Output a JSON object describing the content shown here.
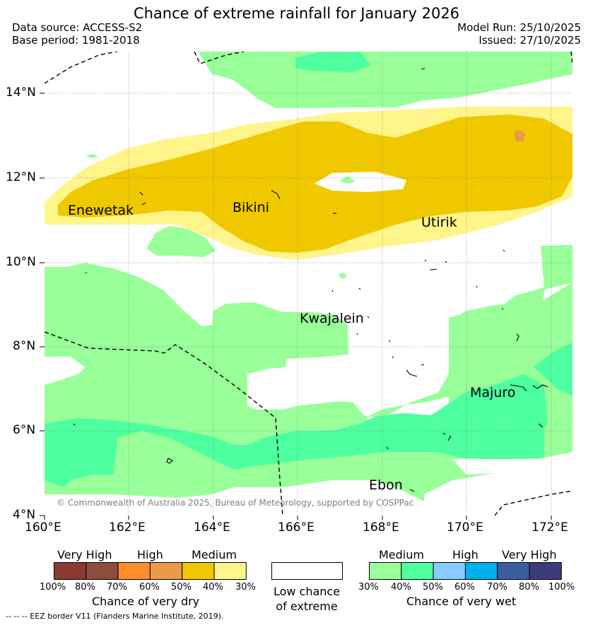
{
  "header": {
    "title": "Chance of extreme rainfall for January 2026",
    "data_source": "Data source: ACCESS-S2",
    "base_period": "Base period: 1981-2018",
    "model_run": "Model Run: 25/10/2025",
    "issued": "Issued: 27/10/2025"
  },
  "map": {
    "lat_labels": [
      "14°N",
      "12°N",
      "10°N",
      "8°N",
      "6°N",
      "4°N"
    ],
    "lon_labels": [
      "160°E",
      "162°E",
      "164°E",
      "166°E",
      "168°E",
      "170°E",
      "172°E"
    ],
    "places": [
      {
        "name": "Enewetak"
      },
      {
        "name": "Bikini"
      },
      {
        "name": "Utirik"
      },
      {
        "name": "Kwajalein"
      },
      {
        "name": "Majuro"
      },
      {
        "name": "Ebon"
      }
    ],
    "copyright": "© Commonwealth of Australia 2025, Bureau of Meteorology, supported by COSPPac"
  },
  "legend": {
    "dry": {
      "headers": [
        "Very High",
        "High",
        "Medium"
      ],
      "colors": [
        "#8b3a32",
        "#8b4d3e",
        "#ff8c2a",
        "#eb9a48",
        "#f0c800",
        "#fff58a"
      ],
      "ticks": [
        "100%",
        "80%",
        "70%",
        "60%",
        "50%",
        "40%",
        "30%"
      ],
      "label": "Chance of very dry"
    },
    "low": {
      "line1": "Low chance",
      "line2": "of extreme",
      "color": "#ffffff"
    },
    "wet": {
      "headers": [
        "Medium",
        "High",
        "Very High"
      ],
      "colors": [
        "#99ff99",
        "#4dff9f",
        "#88cdff",
        "#00b1f0",
        "#3a5fa0",
        "#3d3c7a"
      ],
      "ticks": [
        "30%",
        "40%",
        "50%",
        "60%",
        "70%",
        "80%",
        "100%"
      ],
      "label": "Chance of very wet"
    }
  },
  "footnote": "-- -- -- EEZ border V11 (Flanders Marine Institute, 2019)."
}
